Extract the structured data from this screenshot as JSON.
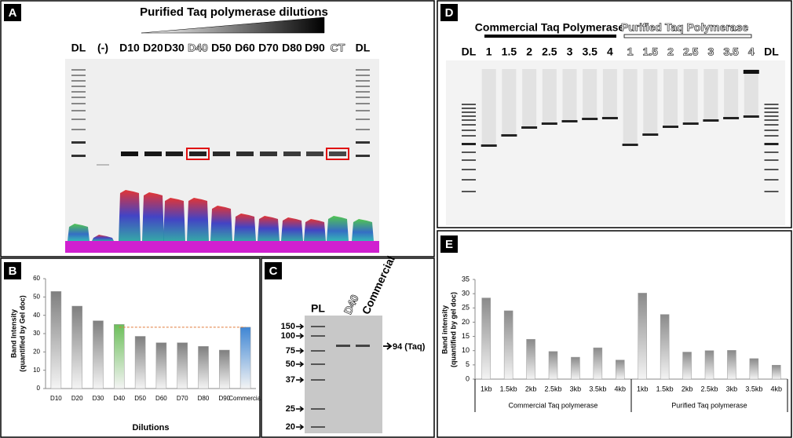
{
  "panels": {
    "A": {
      "label": "A",
      "title": "Purified Taq polymerase dilutions",
      "lanes": [
        "DL",
        "(-)",
        "D10",
        "D20",
        "D30",
        "D40",
        "D50",
        "D60",
        "D70",
        "D80",
        "D90",
        "CT",
        "DL"
      ]
    },
    "C": {
      "label": "C",
      "lanes": [
        "PL",
        "D40",
        "Commercial"
      ],
      "markers": [
        150,
        100,
        75,
        50,
        37,
        25,
        20
      ],
      "annotation": "94 (Taq)"
    },
    "D": {
      "label": "D",
      "groups": [
        "Commercial Taq Polymerase",
        "Purified Taq Polymerase"
      ],
      "lanes": [
        "DL",
        "1",
        "1.5",
        "2",
        "2.5",
        "3",
        "3.5",
        "4",
        "1",
        "1.5",
        "2",
        "2.5",
        "3",
        "3.5",
        "4",
        "DL"
      ]
    }
  },
  "chart_data": [
    {
      "panel_label": "B",
      "type": "bar",
      "xlabel": "Dilutions",
      "ylabel": [
        "Band Intensity",
        "(quantified by Gel doc)"
      ],
      "categories": [
        "D10",
        "D20",
        "D30",
        "D40",
        "D50",
        "D60",
        "D70",
        "D80",
        "D90",
        "Commercial"
      ],
      "values": [
        53,
        45,
        37,
        35,
        28.5,
        25,
        25,
        23,
        21,
        33.5
      ],
      "colors": [
        "#7f7f7f",
        "#7f7f7f",
        "#7f7f7f",
        "#6cbf5a",
        "#7f7f7f",
        "#7f7f7f",
        "#7f7f7f",
        "#7f7f7f",
        "#7f7f7f",
        "#3f86d4"
      ],
      "ylim": [
        0,
        60
      ],
      "yticks": [
        0,
        10,
        20,
        30,
        40,
        50,
        60
      ]
    },
    {
      "panel_label": "E",
      "type": "bar",
      "ylabel": [
        "Band intensity",
        "(quantified by gel doc)"
      ],
      "categories": [
        "1kb",
        "1.5kb",
        "2kb",
        "2.5kb",
        "3kb",
        "3.5kb",
        "4kb",
        "1kb",
        "1.5kb",
        "2kb",
        "2.5kb",
        "3kb",
        "3.5kb",
        "4kb"
      ],
      "values": [
        28.5,
        24,
        14,
        9.7,
        7.7,
        11,
        6.7,
        30.2,
        22.7,
        9.5,
        10,
        10.1,
        7.2,
        4.9
      ],
      "groups": [
        "Commercial Taq polymerase",
        "Purified Taq polymerase"
      ],
      "color": "#8a8a8a",
      "ylim": [
        0,
        35
      ],
      "yticks": [
        0,
        5,
        10,
        15,
        20,
        25,
        30,
        35
      ]
    }
  ]
}
